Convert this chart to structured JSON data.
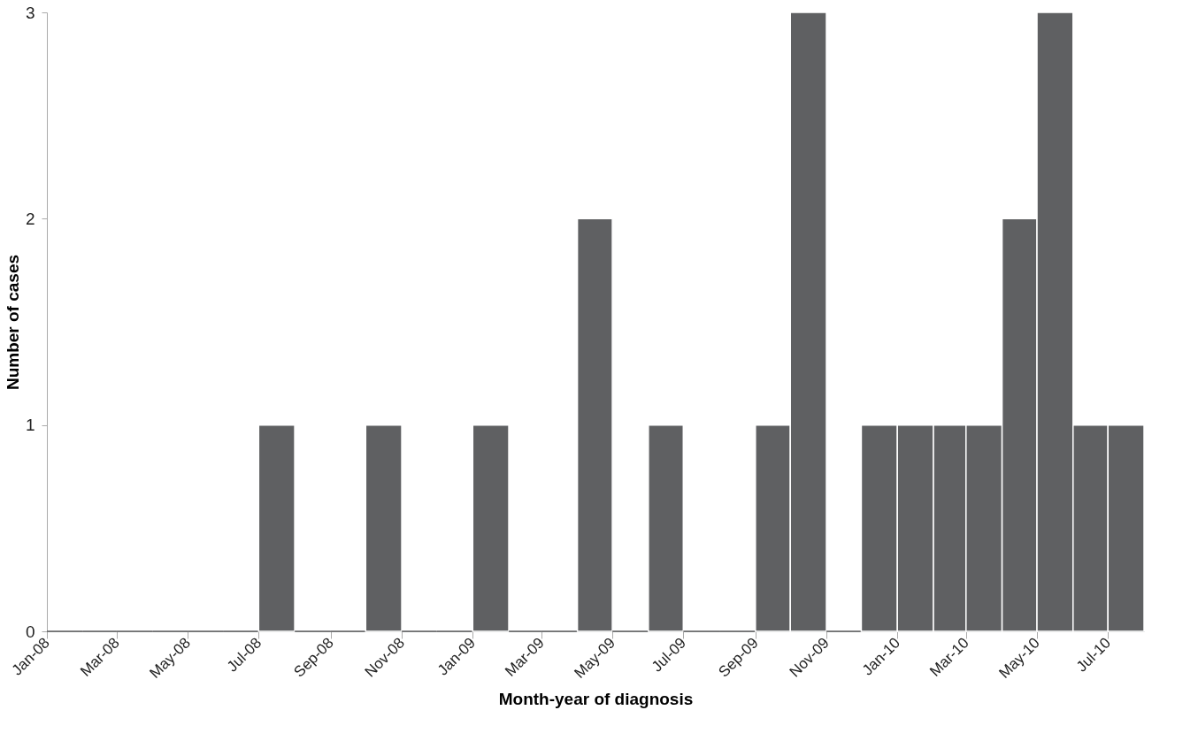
{
  "chart_data": {
    "type": "histogram",
    "xlabel": "Month-year of diagnosis",
    "ylabel": "Number of cases",
    "bins": [
      "2008-01",
      "2008-02",
      "2008-03",
      "2008-04",
      "2008-05",
      "2008-06",
      "2008-07",
      "2008-08",
      "2008-09",
      "2008-10",
      "2008-11",
      "2008-12",
      "2009-01",
      "2009-02",
      "2009-03",
      "2009-04",
      "2009-05",
      "2009-06",
      "2009-07",
      "2009-08",
      "2009-09",
      "2009-10",
      "2009-11",
      "2009-12",
      "2010-01",
      "2010-02",
      "2010-03",
      "2010-04",
      "2010-05",
      "2010-06",
      "2010-07",
      "2010-08"
    ],
    "values": [
      0,
      0,
      0,
      0,
      0,
      0,
      1,
      0,
      0,
      1,
      0,
      0,
      1,
      0,
      0,
      2,
      0,
      1,
      0,
      0,
      1,
      3,
      0,
      1,
      1,
      1,
      1,
      2,
      3,
      1,
      1
    ],
    "color": "#5f6062",
    "xlim": [
      "2008-01",
      "2010-08"
    ],
    "xticks": [
      {
        "value": "2008-01",
        "label": "Jan-08"
      },
      {
        "value": "2008-03",
        "label": "Mar-08"
      },
      {
        "value": "2008-05",
        "label": "May-08"
      },
      {
        "value": "2008-07",
        "label": "Jul-08"
      },
      {
        "value": "2008-09",
        "label": "Sep-08"
      },
      {
        "value": "2008-11",
        "label": "Nov-08"
      },
      {
        "value": "2009-01",
        "label": "Jan-09"
      },
      {
        "value": "2009-03",
        "label": "Mar-09"
      },
      {
        "value": "2009-05",
        "label": "May-09"
      },
      {
        "value": "2009-07",
        "label": "Jul-09"
      },
      {
        "value": "2009-09",
        "label": "Sep-09"
      },
      {
        "value": "2009-11",
        "label": "Nov-09"
      },
      {
        "value": "2010-01",
        "label": "Jan-10"
      },
      {
        "value": "2010-03",
        "label": "Mar-10"
      },
      {
        "value": "2010-05",
        "label": "May-10"
      },
      {
        "value": "2010-07",
        "label": "Jul-10"
      }
    ],
    "ylim": [
      0,
      3
    ],
    "yticks": [
      0,
      1,
      2,
      3
    ],
    "grid": false
  }
}
